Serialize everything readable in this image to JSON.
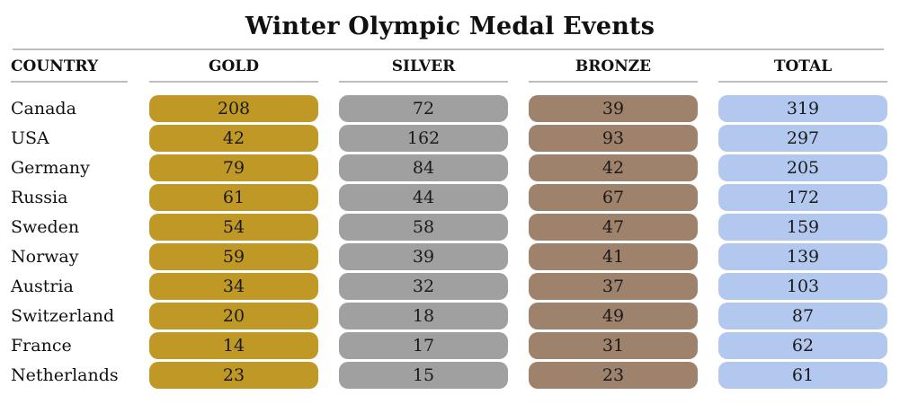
{
  "chart_data": {
    "type": "table",
    "title": "Winter Olympic Medal Events",
    "columns": [
      "COUNTRY",
      "GOLD",
      "SILVER",
      "BRONZE",
      "TOTAL"
    ],
    "rows": [
      {
        "country": "Canada",
        "gold": 208,
        "silver": 72,
        "bronze": 39,
        "total": 319
      },
      {
        "country": "USA",
        "gold": 42,
        "silver": 162,
        "bronze": 93,
        "total": 297
      },
      {
        "country": "Germany",
        "gold": 79,
        "silver": 84,
        "bronze": 42,
        "total": 205
      },
      {
        "country": "Russia",
        "gold": 61,
        "silver": 44,
        "bronze": 67,
        "total": 172
      },
      {
        "country": "Sweden",
        "gold": 54,
        "silver": 58,
        "bronze": 47,
        "total": 159
      },
      {
        "country": "Norway",
        "gold": 59,
        "silver": 39,
        "bronze": 41,
        "total": 139
      },
      {
        "country": "Austria",
        "gold": 34,
        "silver": 32,
        "bronze": 37,
        "total": 103
      },
      {
        "country": "Switzerland",
        "gold": 20,
        "silver": 18,
        "bronze": 49,
        "total": 87
      },
      {
        "country": "France",
        "gold": 14,
        "silver": 17,
        "bronze": 31,
        "total": 62
      },
      {
        "country": "Netherlands",
        "gold": 23,
        "silver": 15,
        "bronze": 23,
        "total": 61
      }
    ],
    "colors": {
      "gold": "#bf9826",
      "silver": "#a0a0a0",
      "bronze": "#9f826b",
      "total": "#b3c8ee"
    }
  }
}
